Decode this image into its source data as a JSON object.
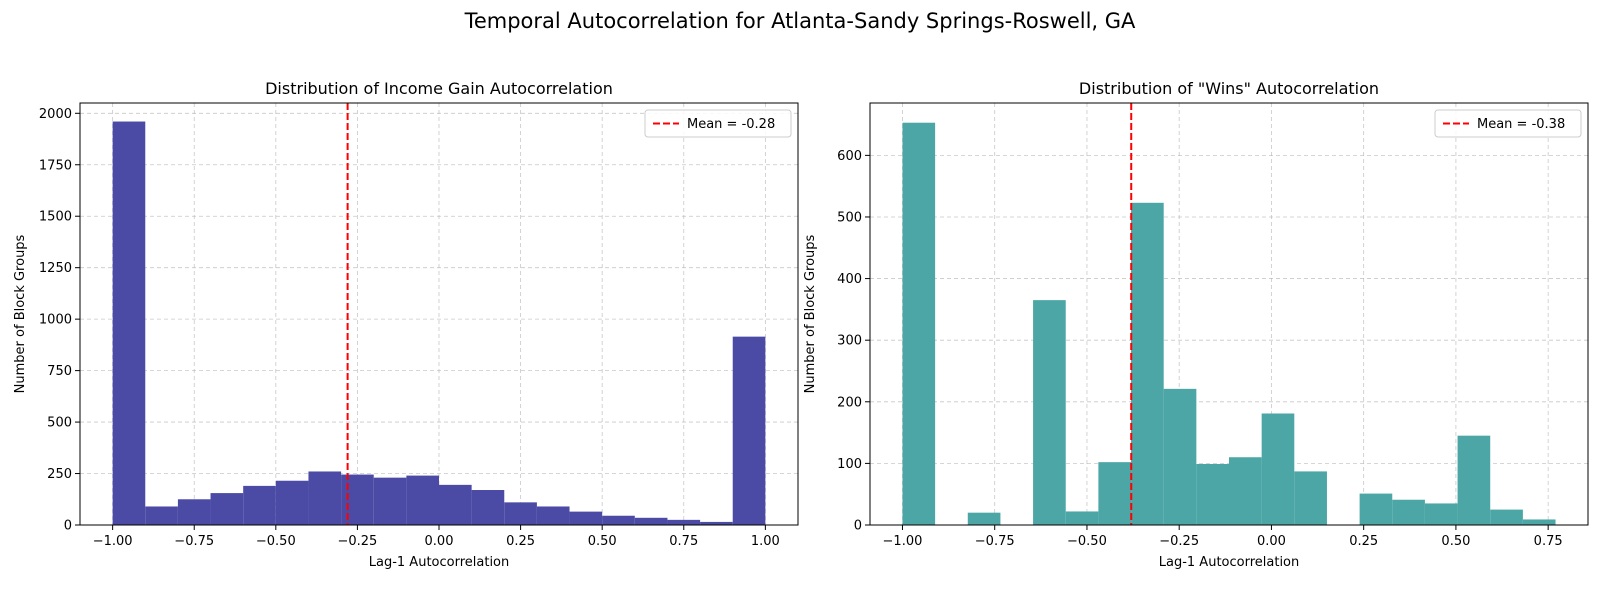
{
  "figure": {
    "suptitle": "Temporal Autocorrelation for Atlanta-Sandy Springs-Roswell, GA"
  },
  "chart_data": [
    {
      "type": "bar",
      "histogram": true,
      "title": "Distribution of Income Gain Autocorrelation",
      "xlabel": "Lag-1 Autocorrelation",
      "ylabel": "Number of Block Groups",
      "xlim": [
        -1.1,
        1.1
      ],
      "ylim": [
        0,
        2050
      ],
      "xticks": [
        -1.0,
        -0.75,
        -0.5,
        -0.25,
        0.0,
        0.25,
        0.5,
        0.75,
        1.0
      ],
      "xtick_labels": [
        "−1.00",
        "−0.75",
        "−0.50",
        "−0.25",
        "0.00",
        "0.25",
        "0.50",
        "0.75",
        "1.00"
      ],
      "yticks": [
        0,
        250,
        500,
        750,
        1000,
        1250,
        1500,
        1750,
        2000
      ],
      "ytick_labels": [
        "0",
        "250",
        "500",
        "750",
        "1000",
        "1250",
        "1500",
        "1750",
        "2000"
      ],
      "grid": true,
      "bar_color": "#4b4ba6",
      "bin_edges": [
        -1.0,
        -0.9,
        -0.8,
        -0.7,
        -0.6,
        -0.5,
        -0.4,
        -0.3,
        -0.2,
        -0.1,
        0.0,
        0.1,
        0.2,
        0.3,
        0.4,
        0.5,
        0.6,
        0.7,
        0.8,
        0.9,
        1.0
      ],
      "counts": [
        1960,
        90,
        125,
        155,
        190,
        215,
        260,
        245,
        230,
        240,
        195,
        170,
        110,
        90,
        65,
        45,
        35,
        25,
        15,
        915
      ],
      "mean_line": {
        "value": -0.28,
        "color": "#ff0000",
        "label": "Mean = -0.28"
      },
      "legend_position": "upper right"
    },
    {
      "type": "bar",
      "histogram": true,
      "title": "Distribution of \"Wins\" Autocorrelation",
      "xlabel": "Lag-1 Autocorrelation",
      "ylabel": "Number of Block Groups",
      "xlim": [
        -1.088,
        0.858
      ],
      "ylim": [
        0,
        685
      ],
      "xticks": [
        -1.0,
        -0.75,
        -0.5,
        -0.25,
        0.0,
        0.25,
        0.5,
        0.75
      ],
      "xtick_labels": [
        "−1.00",
        "−0.75",
        "−0.50",
        "−0.25",
        "0.00",
        "0.25",
        "0.50",
        "0.75"
      ],
      "yticks": [
        0,
        100,
        200,
        300,
        400,
        500,
        600
      ],
      "ytick_labels": [
        "0",
        "100",
        "200",
        "300",
        "400",
        "500",
        "600"
      ],
      "grid": true,
      "bar_color": "#4ca6a6",
      "bin_edges": [
        -1.0,
        -0.9115,
        -0.823,
        -0.7345,
        -0.646,
        -0.5575,
        -0.469,
        -0.3805,
        -0.292,
        -0.2035,
        -0.115,
        -0.0265,
        0.062,
        0.1505,
        0.239,
        0.3275,
        0.416,
        0.5045,
        0.593,
        0.6815,
        0.77
      ],
      "counts": [
        653,
        0,
        20,
        0,
        365,
        22,
        102,
        523,
        221,
        99,
        110,
        181,
        87,
        0,
        51,
        41,
        35,
        145,
        25,
        9
      ],
      "mean_line": {
        "value": -0.38,
        "color": "#ff0000",
        "label": "Mean = -0.38"
      },
      "legend_position": "upper right"
    }
  ]
}
